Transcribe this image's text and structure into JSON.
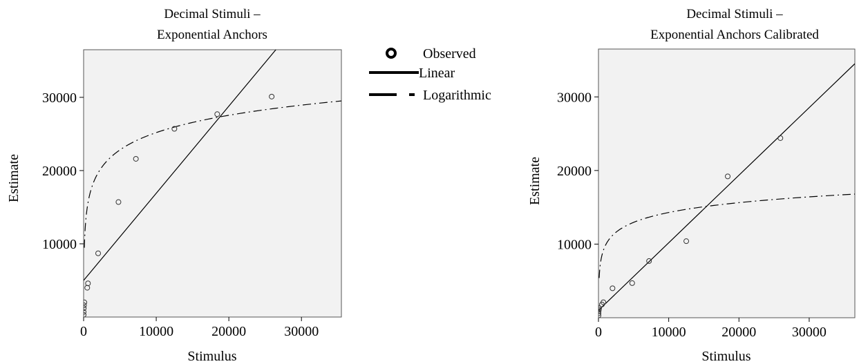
{
  "legend": {
    "placement": "between-panels",
    "items": [
      {
        "label": "Observed",
        "style": "circle"
      },
      {
        "label": "Linear",
        "style": "solid"
      },
      {
        "label": "Logarithmic",
        "style": "dash-dot"
      }
    ]
  },
  "chart_data": [
    {
      "type": "scatter",
      "title_lines": [
        "Decimal Stimuli –",
        "Exponential Anchors"
      ],
      "xlabel": "Stimulus",
      "ylabel": "Estimate",
      "xlim": [
        0,
        35500
      ],
      "ylim": [
        0,
        36500
      ],
      "xticks": [
        0,
        10000,
        20000,
        30000
      ],
      "yticks": [
        10000,
        20000,
        30000
      ],
      "grid": false,
      "background": "#f2f2f2",
      "series": [
        {
          "name": "Observed",
          "kind": "points",
          "x": [
            1,
            5,
            20,
            50,
            100,
            500,
            600,
            2000,
            4800,
            7200,
            12500,
            18400,
            25900
          ],
          "y": [
            300,
            700,
            1200,
            1600,
            2000,
            4000,
            4600,
            8700,
            15700,
            21600,
            25700,
            27700,
            30100
          ]
        },
        {
          "name": "Linear",
          "kind": "line",
          "intercept": 5000,
          "slope": 1.19
        },
        {
          "name": "Logarithmic",
          "kind": "log",
          "intercept": -6250,
          "coef": 3413,
          "x_start": 100
        }
      ]
    },
    {
      "type": "scatter",
      "title_lines": [
        "Decimal Stimuli –",
        "Exponential Anchors Calibrated"
      ],
      "xlabel": "Stimulus",
      "ylabel": "Estimate",
      "xlim": [
        0,
        36500
      ],
      "ylim": [
        0,
        36500
      ],
      "xticks": [
        0,
        10000,
        20000,
        30000
      ],
      "yticks": [
        10000,
        20000,
        30000
      ],
      "grid": false,
      "background": "#f2f2f2",
      "series": [
        {
          "name": "Observed",
          "kind": "points",
          "x": [
            1,
            5,
            20,
            50,
            100,
            500,
            700,
            2000,
            4800,
            7200,
            12500,
            18400,
            25900
          ],
          "y": [
            300,
            600,
            900,
            1100,
            1300,
            1800,
            2100,
            4000,
            4700,
            7700,
            10400,
            19200,
            24400
          ]
        },
        {
          "name": "Linear",
          "kind": "line",
          "intercept": 1000,
          "slope": 0.918
        },
        {
          "name": "Logarithmic",
          "kind": "log",
          "intercept": -3500,
          "coef": 1932,
          "x_start": 100
        }
      ]
    }
  ]
}
